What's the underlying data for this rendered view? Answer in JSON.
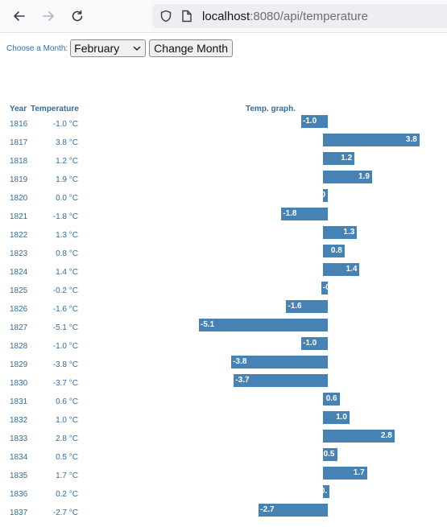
{
  "browser": {
    "url_host": "localhost",
    "url_rest": ":8080/api/temperature"
  },
  "controls": {
    "label": "Choose a Month:",
    "selected_month": "February",
    "button_label": "Change Month"
  },
  "table": {
    "year_header": "Year",
    "temp_header": "Temperature",
    "graph_header": "Temp. graph."
  },
  "chart_data": {
    "type": "bar",
    "orientation": "horizontal",
    "unit": "°C",
    "rows": [
      {
        "year": "1816",
        "temp": "-1.0 °C",
        "value": -1.0,
        "label": "-1.0"
      },
      {
        "year": "1817",
        "temp": "3.8 °C",
        "value": 3.8,
        "label": "3.8"
      },
      {
        "year": "1818",
        "temp": "1.2 °C",
        "value": 1.2,
        "label": "1.2"
      },
      {
        "year": "1819",
        "temp": "1.9 °C",
        "value": 1.9,
        "label": "1.9"
      },
      {
        "year": "1820",
        "temp": "0.0 °C",
        "value": 0.0,
        "label": "0"
      },
      {
        "year": "1821",
        "temp": "-1.8 °C",
        "value": -1.8,
        "label": "-1.8"
      },
      {
        "year": "1822",
        "temp": "1.3 °C",
        "value": 1.3,
        "label": "1.3"
      },
      {
        "year": "1823",
        "temp": "0.8 °C",
        "value": 0.8,
        "label": "0.8"
      },
      {
        "year": "1824",
        "temp": "1.4 °C",
        "value": 1.4,
        "label": "1.4"
      },
      {
        "year": "1825",
        "temp": "-0.2 °C",
        "value": -0.2,
        "label": "-0"
      },
      {
        "year": "1826",
        "temp": "-1.6 °C",
        "value": -1.6,
        "label": "-1.6"
      },
      {
        "year": "1827",
        "temp": "-5.1 °C",
        "value": -5.1,
        "label": "-5.1"
      },
      {
        "year": "1828",
        "temp": "-1.0 °C",
        "value": -1.0,
        "label": "-1.0"
      },
      {
        "year": "1829",
        "temp": "-3.8 °C",
        "value": -3.8,
        "label": "-3.8"
      },
      {
        "year": "1830",
        "temp": "-3.7 °C",
        "value": -3.7,
        "label": "-3.7"
      },
      {
        "year": "1831",
        "temp": "0.6 °C",
        "value": 0.6,
        "label": "0.6"
      },
      {
        "year": "1832",
        "temp": "1.0 °C",
        "value": 1.0,
        "label": "1.0"
      },
      {
        "year": "1833",
        "temp": "2.8 °C",
        "value": 2.8,
        "label": "2.8"
      },
      {
        "year": "1834",
        "temp": "0.5 °C",
        "value": 0.5,
        "label": "0.5"
      },
      {
        "year": "1835",
        "temp": "1.7 °C",
        "value": 1.7,
        "label": "1.7"
      },
      {
        "year": "1836",
        "temp": "0.2 °C",
        "value": 0.2,
        "label": "0."
      },
      {
        "year": "1837",
        "temp": "-2.7 °C",
        "value": -2.7,
        "label": "-2.7"
      }
    ]
  },
  "colors": {
    "bar": "#4682b4",
    "text": "#2f6ea2"
  },
  "icons": {
    "back": "back-arrow-icon",
    "forward": "forward-arrow-icon",
    "reload": "reload-icon",
    "shield": "shield-icon",
    "page": "page-icon",
    "chevron": "chevron-down-icon"
  }
}
